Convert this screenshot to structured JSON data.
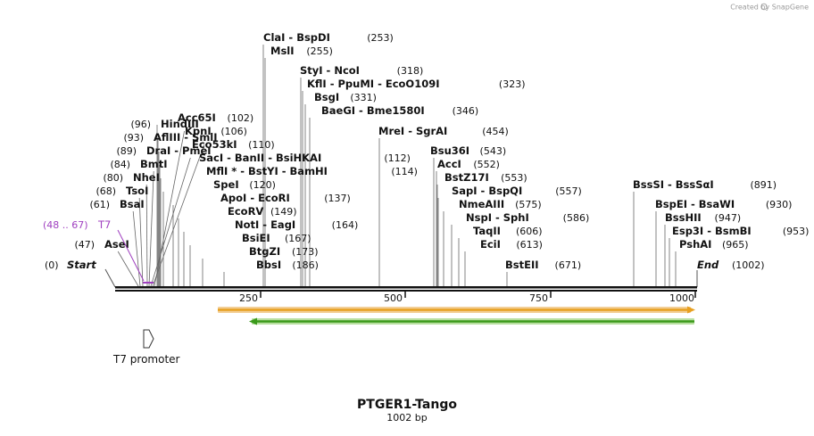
{
  "watermark": "Created by SnapGene",
  "sequence": {
    "name": "PTGER1-Tango",
    "length_label": "1002 bp",
    "length": 1002,
    "start_label": "Start",
    "start_pos": "(0)",
    "end_label": "End",
    "end_pos": "(1002)",
    "ticks": [
      "250",
      "500",
      "750",
      "1000"
    ]
  },
  "primer_binding": {
    "name": "T7",
    "range": "(48 .. 67)"
  },
  "features": {
    "t7_promoter_label": "T7 promoter",
    "orange_arrow_color": "#e8a020",
    "green_arrow_color": "#3a9a1a"
  },
  "enzymes": [
    {
      "names": [
        "ClaI",
        "BspDI"
      ],
      "pos": "(253)"
    },
    {
      "names": [
        "MslI"
      ],
      "pos": "(255)"
    },
    {
      "names": [
        "StyI",
        "NcoI"
      ],
      "pos": "(318)"
    },
    {
      "names": [
        "KflI",
        "PpuMI",
        "EcoO109I"
      ],
      "pos": "(323)"
    },
    {
      "names": [
        "BsgI"
      ],
      "pos": "(331)"
    },
    {
      "names": [
        "BaeGI",
        "Bme1580I"
      ],
      "pos": "(346)"
    },
    {
      "names": [
        "HindIII"
      ],
      "pos": "(96)"
    },
    {
      "names": [
        "Acc65I"
      ],
      "pos": "(102)"
    },
    {
      "names": [
        "AflIII",
        "SmlI"
      ],
      "pos": "(93)"
    },
    {
      "names": [
        "KpnI"
      ],
      "pos": "(106)"
    },
    {
      "names": [
        "MreI",
        "SgrAI"
      ],
      "pos": "(454)"
    },
    {
      "names": [
        "DraI",
        "PmeI"
      ],
      "pos": "(89)"
    },
    {
      "names": [
        "Eco53kI"
      ],
      "pos": "(110)"
    },
    {
      "names": [
        "Bsu36I"
      ],
      "pos": "(543)"
    },
    {
      "names": [
        "SacI",
        "BanII",
        "BsiHKAI"
      ],
      "pos": "(112)"
    },
    {
      "names": [
        "BmtI"
      ],
      "pos": "(84)"
    },
    {
      "names": [
        "MflI *",
        "BstYI",
        "BamHI"
      ],
      "pos": "(114)"
    },
    {
      "names": [
        "AccI"
      ],
      "pos": "(552)"
    },
    {
      "names": [
        "NheI"
      ],
      "pos": "(80)"
    },
    {
      "names": [
        "BstZ17I"
      ],
      "pos": "(553)"
    },
    {
      "names": [
        "SpeI"
      ],
      "pos": "(120)"
    },
    {
      "names": [
        "TsoI"
      ],
      "pos": "(68)"
    },
    {
      "names": [
        "SapI",
        "BspQI"
      ],
      "pos": "(557)"
    },
    {
      "names": [
        "BssSI",
        "BssSαI"
      ],
      "pos": "(891)"
    },
    {
      "names": [
        "BsaI"
      ],
      "pos": "(61)"
    },
    {
      "names": [
        "ApoI",
        "EcoRI"
      ],
      "pos": "(137)"
    },
    {
      "names": [
        "NmeAIII"
      ],
      "pos": "(575)"
    },
    {
      "names": [
        "BspEI",
        "BsaWI"
      ],
      "pos": "(930)"
    },
    {
      "names": [
        "EcoRV"
      ],
      "pos": "(149)"
    },
    {
      "names": [
        "NspI",
        "SphI"
      ],
      "pos": "(586)"
    },
    {
      "names": [
        "BssHII"
      ],
      "pos": "(947)"
    },
    {
      "names": [
        "NotI",
        "EagI"
      ],
      "pos": "(164)"
    },
    {
      "names": [
        "TaqII"
      ],
      "pos": "(606)"
    },
    {
      "names": [
        "Esp3I",
        "BsmBI"
      ],
      "pos": "(953)"
    },
    {
      "names": [
        "BsiEI"
      ],
      "pos": "(167)"
    },
    {
      "names": [
        "EciI"
      ],
      "pos": "(613)"
    },
    {
      "names": [
        "PshAI"
      ],
      "pos": "(965)"
    },
    {
      "names": [
        "AseI"
      ],
      "pos": "(47)"
    },
    {
      "names": [
        "BtgZI"
      ],
      "pos": "(173)"
    },
    {
      "names": [
        "BbsI"
      ],
      "pos": "(186)"
    },
    {
      "names": [
        "BstEII"
      ],
      "pos": "(671)"
    }
  ]
}
